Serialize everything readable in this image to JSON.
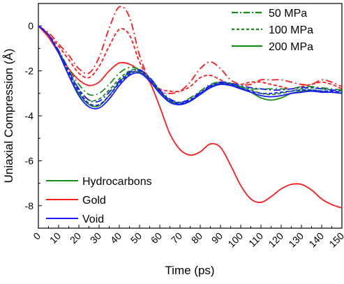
{
  "chart_data": {
    "type": "line",
    "title": "",
    "xlabel": "Time (ps)",
    "ylabel": "Uniaxial Compression (Å)",
    "xlim": [
      0,
      150
    ],
    "ylim": [
      -9,
      1
    ],
    "x_ticks": [
      0,
      10,
      20,
      30,
      40,
      50,
      60,
      70,
      80,
      90,
      100,
      110,
      120,
      130,
      140,
      150
    ],
    "y_ticks": [
      0,
      -2,
      -4,
      -6,
      -8
    ],
    "grid": false,
    "colors": {
      "hydrocarbons": "#1a8c1a",
      "gold": "#ff1a1a",
      "void": "#1a1aff"
    },
    "legend_materials": [
      {
        "label": "Hydrocarbons",
        "color": "#1a8c1a"
      },
      {
        "label": "Gold",
        "color": "#ff1a1a"
      },
      {
        "label": "Void",
        "color": "#1a1aff"
      }
    ],
    "legend_pressures": [
      {
        "label": "50 MPa",
        "dash": "dashdot"
      },
      {
        "label": "100 MPa",
        "dash": "dashed"
      },
      {
        "label": "200 MPa",
        "dash": "solid"
      }
    ],
    "series": [
      {
        "material": "Gold",
        "pressure": "50 MPa",
        "color": "#ff1a1a",
        "dash": "dashdot",
        "points": [
          [
            0,
            0
          ],
          [
            5,
            -0.3
          ],
          [
            10,
            -0.8
          ],
          [
            15,
            -1.3
          ],
          [
            20,
            -1.9
          ],
          [
            25,
            -2.1
          ],
          [
            30,
            -1.4
          ],
          [
            35,
            -0.1
          ],
          [
            40,
            0.85
          ],
          [
            45,
            0.4
          ],
          [
            50,
            -1.3
          ],
          [
            55,
            -2.4
          ],
          [
            60,
            -2.9
          ],
          [
            65,
            -3.0
          ],
          [
            70,
            -2.9
          ],
          [
            75,
            -2.5
          ],
          [
            80,
            -1.9
          ],
          [
            85,
            -1.6
          ],
          [
            90,
            -1.9
          ],
          [
            95,
            -2.4
          ],
          [
            100,
            -2.6
          ],
          [
            105,
            -2.6
          ],
          [
            110,
            -2.4
          ],
          [
            115,
            -2.4
          ],
          [
            120,
            -2.4
          ],
          [
            125,
            -2.5
          ],
          [
            130,
            -2.6
          ],
          [
            135,
            -2.6
          ],
          [
            140,
            -2.4
          ],
          [
            145,
            -2.5
          ],
          [
            150,
            -2.7
          ]
        ]
      },
      {
        "material": "Gold",
        "pressure": "100 MPa",
        "color": "#ff1a1a",
        "dash": "dashed",
        "points": [
          [
            0,
            0
          ],
          [
            5,
            -0.4
          ],
          [
            10,
            -0.9
          ],
          [
            15,
            -1.5
          ],
          [
            20,
            -2.1
          ],
          [
            25,
            -2.3
          ],
          [
            30,
            -1.8
          ],
          [
            35,
            -0.9
          ],
          [
            40,
            -0.15
          ],
          [
            45,
            -0.4
          ],
          [
            50,
            -1.6
          ],
          [
            55,
            -2.4
          ],
          [
            60,
            -2.8
          ],
          [
            65,
            -2.9
          ],
          [
            70,
            -2.9
          ],
          [
            75,
            -2.7
          ],
          [
            80,
            -2.3
          ],
          [
            85,
            -2.2
          ],
          [
            90,
            -2.4
          ],
          [
            95,
            -2.6
          ],
          [
            100,
            -2.6
          ],
          [
            105,
            -2.5
          ],
          [
            110,
            -2.5
          ],
          [
            115,
            -2.6
          ],
          [
            120,
            -2.7
          ],
          [
            125,
            -2.8
          ],
          [
            130,
            -2.7
          ],
          [
            135,
            -2.6
          ],
          [
            140,
            -2.5
          ],
          [
            145,
            -2.6
          ],
          [
            150,
            -2.8
          ]
        ]
      },
      {
        "material": "Gold",
        "pressure": "200 MPa",
        "color": "#ff1a1a",
        "dash": "solid",
        "points": [
          [
            0,
            0
          ],
          [
            5,
            -0.5
          ],
          [
            10,
            -1.2
          ],
          [
            15,
            -1.9
          ],
          [
            20,
            -2.4
          ],
          [
            25,
            -2.65
          ],
          [
            30,
            -2.5
          ],
          [
            35,
            -2.0
          ],
          [
            40,
            -1.65
          ],
          [
            45,
            -1.7
          ],
          [
            50,
            -2.0
          ],
          [
            55,
            -2.5
          ],
          [
            60,
            -3.6
          ],
          [
            65,
            -4.8
          ],
          [
            70,
            -5.5
          ],
          [
            75,
            -5.75
          ],
          [
            80,
            -5.6
          ],
          [
            85,
            -5.25
          ],
          [
            90,
            -5.4
          ],
          [
            95,
            -6.2
          ],
          [
            100,
            -7.1
          ],
          [
            105,
            -7.7
          ],
          [
            110,
            -7.85
          ],
          [
            115,
            -7.6
          ],
          [
            120,
            -7.25
          ],
          [
            125,
            -7.05
          ],
          [
            130,
            -7.05
          ],
          [
            135,
            -7.3
          ],
          [
            140,
            -7.7
          ],
          [
            145,
            -7.95
          ],
          [
            150,
            -8.1
          ]
        ]
      },
      {
        "material": "Hydrocarbons",
        "pressure": "50 MPa",
        "color": "#1a8c1a",
        "dash": "dashdot",
        "points": [
          [
            0,
            0
          ],
          [
            5,
            -0.4
          ],
          [
            10,
            -1.1
          ],
          [
            15,
            -1.9
          ],
          [
            20,
            -2.6
          ],
          [
            25,
            -3.05
          ],
          [
            30,
            -3.0
          ],
          [
            35,
            -2.6
          ],
          [
            40,
            -2.1
          ],
          [
            45,
            -1.85
          ],
          [
            50,
            -1.95
          ],
          [
            55,
            -2.4
          ],
          [
            60,
            -2.9
          ],
          [
            65,
            -3.3
          ],
          [
            70,
            -3.4
          ],
          [
            75,
            -3.2
          ],
          [
            80,
            -2.9
          ],
          [
            85,
            -2.6
          ],
          [
            90,
            -2.5
          ],
          [
            95,
            -2.6
          ],
          [
            100,
            -2.7
          ],
          [
            105,
            -2.8
          ],
          [
            110,
            -2.8
          ],
          [
            115,
            -2.8
          ],
          [
            120,
            -2.8
          ],
          [
            125,
            -2.8
          ],
          [
            130,
            -2.7
          ],
          [
            135,
            -2.7
          ],
          [
            140,
            -2.75
          ],
          [
            145,
            -2.8
          ],
          [
            150,
            -2.85
          ]
        ]
      },
      {
        "material": "Hydrocarbons",
        "pressure": "100 MPa",
        "color": "#1a8c1a",
        "dash": "dashed",
        "points": [
          [
            0,
            0
          ],
          [
            5,
            -0.4
          ],
          [
            10,
            -1.1
          ],
          [
            15,
            -2.0
          ],
          [
            20,
            -2.8
          ],
          [
            25,
            -3.3
          ],
          [
            30,
            -3.25
          ],
          [
            35,
            -2.85
          ],
          [
            40,
            -2.35
          ],
          [
            45,
            -2.0
          ],
          [
            50,
            -1.95
          ],
          [
            55,
            -2.3
          ],
          [
            60,
            -2.85
          ],
          [
            65,
            -3.3
          ],
          [
            70,
            -3.45
          ],
          [
            75,
            -3.3
          ],
          [
            80,
            -3.0
          ],
          [
            85,
            -2.7
          ],
          [
            90,
            -2.5
          ],
          [
            95,
            -2.55
          ],
          [
            100,
            -2.7
          ],
          [
            105,
            -2.85
          ],
          [
            110,
            -3.0
          ],
          [
            115,
            -3.05
          ],
          [
            120,
            -3.0
          ],
          [
            125,
            -2.9
          ],
          [
            130,
            -2.8
          ],
          [
            135,
            -2.75
          ],
          [
            140,
            -2.8
          ],
          [
            145,
            -2.85
          ],
          [
            150,
            -2.9
          ]
        ]
      },
      {
        "material": "Hydrocarbons",
        "pressure": "200 MPa",
        "color": "#1a8c1a",
        "dash": "solid",
        "points": [
          [
            0,
            0
          ],
          [
            5,
            -0.4
          ],
          [
            10,
            -1.2
          ],
          [
            15,
            -2.2
          ],
          [
            20,
            -3.0
          ],
          [
            25,
            -3.5
          ],
          [
            30,
            -3.55
          ],
          [
            35,
            -3.1
          ],
          [
            40,
            -2.5
          ],
          [
            45,
            -2.1
          ],
          [
            50,
            -2.05
          ],
          [
            55,
            -2.4
          ],
          [
            60,
            -2.95
          ],
          [
            65,
            -3.35
          ],
          [
            70,
            -3.5
          ],
          [
            75,
            -3.35
          ],
          [
            80,
            -3.0
          ],
          [
            85,
            -2.7
          ],
          [
            90,
            -2.55
          ],
          [
            95,
            -2.6
          ],
          [
            100,
            -2.75
          ],
          [
            105,
            -2.95
          ],
          [
            110,
            -3.2
          ],
          [
            115,
            -3.3
          ],
          [
            120,
            -3.2
          ],
          [
            125,
            -3.0
          ],
          [
            130,
            -2.9
          ],
          [
            135,
            -2.85
          ],
          [
            140,
            -2.9
          ],
          [
            145,
            -2.95
          ],
          [
            150,
            -3.0
          ]
        ]
      },
      {
        "material": "Void",
        "pressure": "50 MPa",
        "color": "#1a1aff",
        "dash": "dashdot",
        "points": [
          [
            0,
            0
          ],
          [
            5,
            -0.4
          ],
          [
            10,
            -1.1
          ],
          [
            15,
            -2.0
          ],
          [
            20,
            -2.8
          ],
          [
            25,
            -3.3
          ],
          [
            30,
            -3.35
          ],
          [
            35,
            -2.95
          ],
          [
            40,
            -2.45
          ],
          [
            45,
            -2.05
          ],
          [
            50,
            -1.95
          ],
          [
            55,
            -2.3
          ],
          [
            60,
            -2.85
          ],
          [
            65,
            -3.25
          ],
          [
            70,
            -3.4
          ],
          [
            75,
            -3.25
          ],
          [
            80,
            -2.95
          ],
          [
            85,
            -2.65
          ],
          [
            90,
            -2.5
          ],
          [
            95,
            -2.55
          ],
          [
            100,
            -2.65
          ],
          [
            105,
            -2.75
          ],
          [
            110,
            -2.8
          ],
          [
            115,
            -2.85
          ],
          [
            120,
            -2.85
          ],
          [
            125,
            -2.8
          ],
          [
            130,
            -2.75
          ],
          [
            135,
            -2.75
          ],
          [
            140,
            -2.8
          ],
          [
            145,
            -2.85
          ],
          [
            150,
            -2.9
          ]
        ]
      },
      {
        "material": "Void",
        "pressure": "100 MPa",
        "color": "#1a1aff",
        "dash": "dashed",
        "points": [
          [
            0,
            0
          ],
          [
            5,
            -0.4
          ],
          [
            10,
            -1.2
          ],
          [
            15,
            -2.1
          ],
          [
            20,
            -2.9
          ],
          [
            25,
            -3.45
          ],
          [
            30,
            -3.5
          ],
          [
            35,
            -3.1
          ],
          [
            40,
            -2.55
          ],
          [
            45,
            -2.15
          ],
          [
            50,
            -2.0
          ],
          [
            55,
            -2.35
          ],
          [
            60,
            -2.9
          ],
          [
            65,
            -3.3
          ],
          [
            70,
            -3.45
          ],
          [
            75,
            -3.3
          ],
          [
            80,
            -3.0
          ],
          [
            85,
            -2.7
          ],
          [
            90,
            -2.55
          ],
          [
            95,
            -2.6
          ],
          [
            100,
            -2.75
          ],
          [
            105,
            -2.9
          ],
          [
            110,
            -3.0
          ],
          [
            115,
            -3.0
          ],
          [
            120,
            -2.95
          ],
          [
            125,
            -2.9
          ],
          [
            130,
            -2.85
          ],
          [
            135,
            -2.85
          ],
          [
            140,
            -2.9
          ],
          [
            145,
            -2.9
          ],
          [
            150,
            -2.95
          ]
        ]
      },
      {
        "material": "Void",
        "pressure": "200 MPa",
        "color": "#1a1aff",
        "dash": "solid",
        "points": [
          [
            0,
            0
          ],
          [
            5,
            -0.4
          ],
          [
            10,
            -1.2
          ],
          [
            15,
            -2.2
          ],
          [
            20,
            -3.1
          ],
          [
            25,
            -3.6
          ],
          [
            30,
            -3.65
          ],
          [
            35,
            -3.25
          ],
          [
            40,
            -2.65
          ],
          [
            45,
            -2.2
          ],
          [
            50,
            -2.1
          ],
          [
            55,
            -2.45
          ],
          [
            60,
            -3.0
          ],
          [
            65,
            -3.4
          ],
          [
            70,
            -3.5
          ],
          [
            75,
            -3.35
          ],
          [
            80,
            -3.05
          ],
          [
            85,
            -2.75
          ],
          [
            90,
            -2.6
          ],
          [
            95,
            -2.65
          ],
          [
            100,
            -2.8
          ],
          [
            105,
            -2.95
          ],
          [
            110,
            -3.1
          ],
          [
            115,
            -3.15
          ],
          [
            120,
            -3.1
          ],
          [
            125,
            -3.0
          ],
          [
            130,
            -2.95
          ],
          [
            135,
            -2.9
          ],
          [
            140,
            -2.95
          ],
          [
            145,
            -2.95
          ],
          [
            150,
            -3.0
          ]
        ]
      }
    ]
  }
}
